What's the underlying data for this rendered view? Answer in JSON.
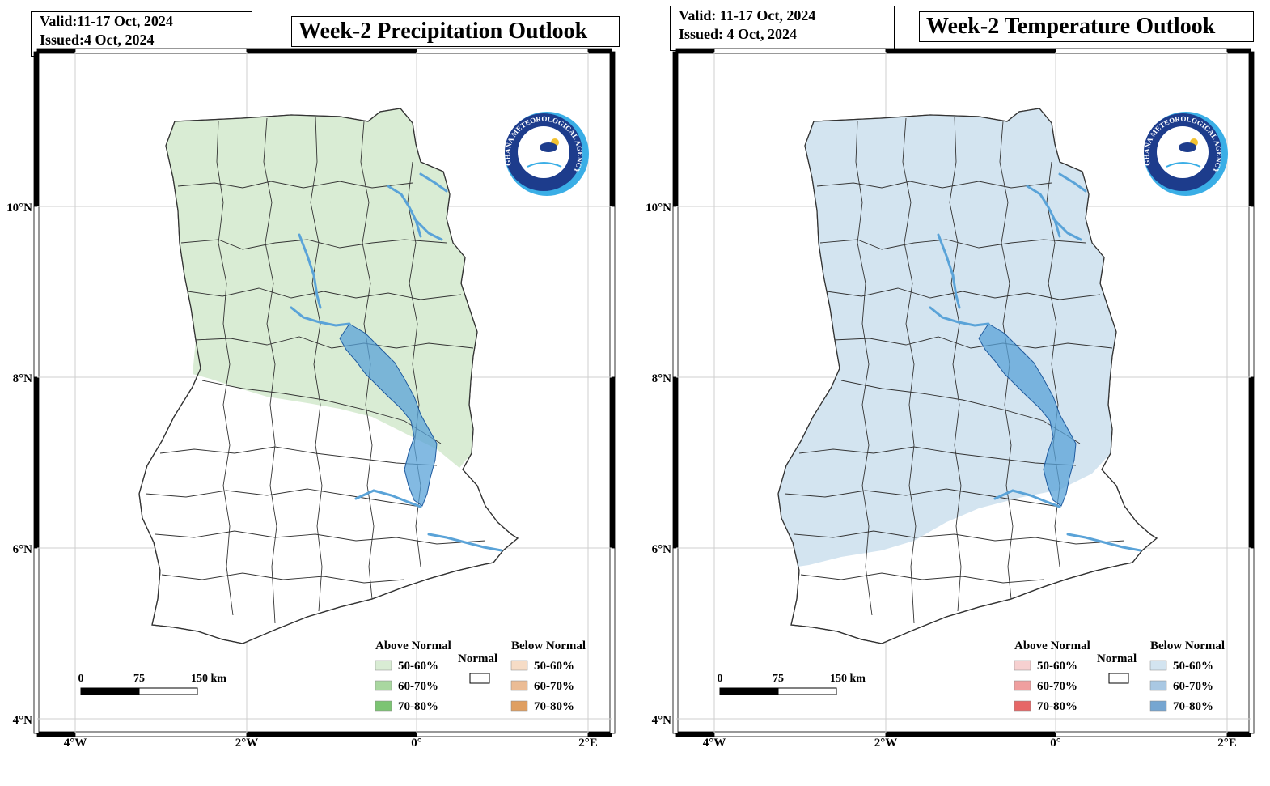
{
  "panels": [
    {
      "id": "precipitation",
      "valid": "Valid:11-17 Oct, 2024",
      "issued": "Issued:4 Oct, 2024",
      "title": "Week-2 Precipitation Outlook",
      "lat_labels": [
        "10°N",
        "8°N",
        "6°N",
        "4°N"
      ],
      "lon_labels": [
        "4°W",
        "2°W",
        "0°",
        "2°E"
      ],
      "scale_labels": [
        "0",
        "75",
        "150 km"
      ],
      "legend": {
        "above_title": "Above Normal",
        "normal_title": "Normal",
        "below_title": "Below Normal",
        "above": [
          {
            "label": "50-60%",
            "color": "#d9ecd4"
          },
          {
            "label": "60-70%",
            "color": "#a9d7a0"
          },
          {
            "label": "70-80%",
            "color": "#7cc473"
          }
        ],
        "below": [
          {
            "label": "50-60%",
            "color": "#f6dcc6"
          },
          {
            "label": "60-70%",
            "color": "#ebbc95"
          },
          {
            "label": "70-80%",
            "color": "#df9f62"
          }
        ]
      },
      "forecast_region": "north",
      "fill_color": "#d9ecd4"
    },
    {
      "id": "temperature",
      "valid": "Valid: 11-17 Oct, 2024",
      "issued": "Issued: 4 Oct, 2024",
      "title": "Week-2 Temperature Outlook",
      "lat_labels": [
        "10°N",
        "8°N",
        "6°N",
        "4°N"
      ],
      "lon_labels": [
        "4°W",
        "2°W",
        "0°",
        "2°E"
      ],
      "scale_labels": [
        "0",
        "75",
        "150 km"
      ],
      "legend": {
        "above_title": "Above Normal",
        "normal_title": "Normal",
        "below_title": "Below Normal",
        "above": [
          {
            "label": "50-60%",
            "color": "#f6d0d0"
          },
          {
            "label": "60-70%",
            "color": "#ef9f9f"
          },
          {
            "label": "70-80%",
            "color": "#e66767"
          }
        ],
        "below": [
          {
            "label": "50-60%",
            "color": "#d3e4f0"
          },
          {
            "label": "60-70%",
            "color": "#a9c8e3"
          },
          {
            "label": "70-80%",
            "color": "#76a6d1"
          }
        ]
      },
      "forecast_region": "most",
      "fill_color": "#d3e4f0"
    }
  ],
  "logo": {
    "text": "GHANA METEOROLOGICAL AGENCY",
    "dark_color": "#1d3c8c",
    "light_color": "#3aaee6"
  },
  "colors": {
    "water": "#5aa3d8",
    "water_stroke": "#1f5a9e"
  }
}
